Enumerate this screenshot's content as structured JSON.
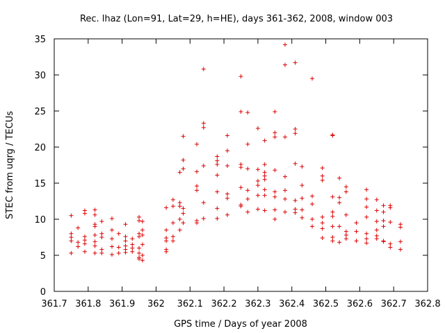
{
  "chart_data": {
    "type": "scatter",
    "title": "Rec. lhaz (Lon=91, Lat=29, h=HE), days 361-362, 2008, window 003",
    "xlabel": "GPS time / Days of year 2008",
    "ylabel": "STEC from uqrg / TECUs",
    "xlim": [
      361.7,
      362.8
    ],
    "ylim": [
      0,
      35
    ],
    "xticks": [
      361.7,
      361.8,
      361.9,
      362.0,
      362.1,
      362.2,
      362.3,
      362.4,
      362.5,
      362.6,
      362.7,
      362.8
    ],
    "xtick_labels": [
      "361.7",
      "361.8",
      "361.9",
      "362",
      "362.1",
      "362.2",
      "362.3",
      "362.4",
      "362.5",
      "362.6",
      "362.7",
      "362.8"
    ],
    "yticks": [
      0,
      5,
      10,
      15,
      20,
      25,
      30,
      35
    ],
    "ytick_labels": [
      "0",
      "5",
      "10",
      "15",
      "20",
      "25",
      "30",
      "35"
    ],
    "grid": false,
    "legend": "none",
    "marker": "plus",
    "color": "#dd0000",
    "points": [
      [
        361.75,
        10.5
      ],
      [
        361.75,
        8.0
      ],
      [
        361.75,
        7.5
      ],
      [
        361.75,
        7.0
      ],
      [
        361.75,
        5.3
      ],
      [
        361.77,
        8.8
      ],
      [
        361.77,
        6.8
      ],
      [
        361.77,
        6.2
      ],
      [
        361.79,
        11.2
      ],
      [
        361.79,
        10.8
      ],
      [
        361.79,
        7.6
      ],
      [
        361.79,
        7.1
      ],
      [
        361.79,
        6.6
      ],
      [
        361.79,
        5.5
      ],
      [
        361.82,
        11.3
      ],
      [
        361.82,
        10.6
      ],
      [
        361.82,
        9.3
      ],
      [
        361.82,
        9.0
      ],
      [
        361.82,
        7.8
      ],
      [
        361.82,
        6.9
      ],
      [
        361.82,
        6.3
      ],
      [
        361.82,
        5.3
      ],
      [
        361.84,
        9.7
      ],
      [
        361.84,
        8.0
      ],
      [
        361.84,
        7.5
      ],
      [
        361.84,
        5.8
      ],
      [
        361.84,
        5.3
      ],
      [
        361.87,
        10.1
      ],
      [
        361.87,
        8.5
      ],
      [
        361.87,
        7.3
      ],
      [
        361.87,
        6.2
      ],
      [
        361.87,
        5.1
      ],
      [
        361.89,
        8.0
      ],
      [
        361.89,
        6.1
      ],
      [
        361.89,
        5.3
      ],
      [
        361.91,
        9.3
      ],
      [
        361.91,
        7.6
      ],
      [
        361.91,
        7.0
      ],
      [
        361.91,
        6.3
      ],
      [
        361.91,
        5.8
      ],
      [
        361.91,
        5.4
      ],
      [
        361.93,
        7.3
      ],
      [
        361.93,
        6.5
      ],
      [
        361.93,
        6.0
      ],
      [
        361.93,
        5.5
      ],
      [
        361.95,
        10.3
      ],
      [
        361.95,
        9.8
      ],
      [
        361.95,
        8.0
      ],
      [
        361.95,
        7.6
      ],
      [
        361.95,
        6.0
      ],
      [
        361.95,
        5.3
      ],
      [
        361.95,
        4.7
      ],
      [
        361.95,
        4.5
      ],
      [
        361.96,
        9.7
      ],
      [
        361.96,
        8.5
      ],
      [
        361.96,
        7.8
      ],
      [
        361.96,
        6.5
      ],
      [
        361.96,
        5.0
      ],
      [
        361.96,
        4.3
      ],
      [
        362.03,
        11.6
      ],
      [
        362.03,
        8.5
      ],
      [
        362.03,
        7.4
      ],
      [
        362.03,
        7.0
      ],
      [
        362.03,
        5.8
      ],
      [
        362.03,
        5.5
      ],
      [
        362.05,
        12.7
      ],
      [
        362.05,
        11.8
      ],
      [
        362.05,
        9.5
      ],
      [
        362.05,
        7.6
      ],
      [
        362.05,
        7.0
      ],
      [
        362.07,
        16.5
      ],
      [
        362.07,
        12.3
      ],
      [
        362.07,
        11.8
      ],
      [
        362.07,
        10.0
      ],
      [
        362.07,
        8.5
      ],
      [
        362.08,
        21.5
      ],
      [
        362.08,
        18.2
      ],
      [
        362.08,
        17.0
      ],
      [
        362.08,
        11.5
      ],
      [
        362.08,
        10.8
      ],
      [
        362.08,
        9.5
      ],
      [
        362.12,
        20.4
      ],
      [
        362.12,
        16.6
      ],
      [
        362.12,
        14.6
      ],
      [
        362.12,
        14.0
      ],
      [
        362.12,
        9.8
      ],
      [
        362.12,
        9.5
      ],
      [
        362.14,
        30.8
      ],
      [
        362.14,
        23.3
      ],
      [
        362.14,
        22.7
      ],
      [
        362.14,
        17.4
      ],
      [
        362.14,
        12.3
      ],
      [
        362.14,
        10.1
      ],
      [
        362.18,
        18.7
      ],
      [
        362.18,
        18.1
      ],
      [
        362.18,
        17.6
      ],
      [
        362.18,
        16.1
      ],
      [
        362.18,
        13.8
      ],
      [
        362.18,
        11.5
      ],
      [
        362.18,
        10.1
      ],
      [
        362.21,
        21.6
      ],
      [
        362.21,
        19.5
      ],
      [
        362.21,
        17.4
      ],
      [
        362.21,
        13.5
      ],
      [
        362.21,
        12.9
      ],
      [
        362.21,
        10.6
      ],
      [
        362.25,
        29.8
      ],
      [
        362.25,
        24.9
      ],
      [
        362.25,
        17.6
      ],
      [
        362.25,
        17.2
      ],
      [
        362.25,
        14.4
      ],
      [
        362.25,
        12.0
      ],
      [
        362.25,
        11.8
      ],
      [
        362.27,
        24.8
      ],
      [
        362.27,
        20.4
      ],
      [
        362.27,
        17.0
      ],
      [
        362.27,
        14.0
      ],
      [
        362.27,
        12.8
      ],
      [
        362.27,
        11.0
      ],
      [
        362.3,
        22.6
      ],
      [
        362.3,
        16.9
      ],
      [
        362.3,
        15.3
      ],
      [
        362.3,
        14.7
      ],
      [
        362.3,
        13.3
      ],
      [
        362.3,
        11.4
      ],
      [
        362.32,
        20.9
      ],
      [
        362.32,
        17.6
      ],
      [
        362.32,
        16.5
      ],
      [
        362.32,
        16.0
      ],
      [
        362.32,
        15.5
      ],
      [
        362.32,
        14.1
      ],
      [
        362.32,
        13.3
      ],
      [
        362.32,
        11.2
      ],
      [
        362.35,
        24.9
      ],
      [
        362.35,
        22.0
      ],
      [
        362.35,
        21.4
      ],
      [
        362.35,
        16.8
      ],
      [
        362.35,
        13.8
      ],
      [
        362.35,
        13.1
      ],
      [
        362.35,
        11.3
      ],
      [
        362.35,
        10.0
      ],
      [
        362.38,
        34.2
      ],
      [
        362.38,
        31.4
      ],
      [
        362.38,
        21.4
      ],
      [
        362.38,
        15.9
      ],
      [
        362.38,
        14.0
      ],
      [
        362.38,
        12.8
      ],
      [
        362.38,
        11.0
      ],
      [
        362.41,
        31.7
      ],
      [
        362.41,
        22.5
      ],
      [
        362.41,
        21.9
      ],
      [
        362.41,
        17.7
      ],
      [
        362.41,
        12.6
      ],
      [
        362.41,
        11.4
      ],
      [
        362.41,
        10.9
      ],
      [
        362.43,
        17.3
      ],
      [
        362.43,
        14.7
      ],
      [
        362.43,
        12.9
      ],
      [
        362.43,
        11.3
      ],
      [
        362.43,
        10.2
      ],
      [
        362.46,
        29.5
      ],
      [
        362.46,
        13.2
      ],
      [
        362.46,
        12.1
      ],
      [
        362.46,
        10.0
      ],
      [
        362.46,
        9.0
      ],
      [
        362.49,
        17.1
      ],
      [
        362.49,
        16.0
      ],
      [
        362.49,
        15.4
      ],
      [
        362.49,
        10.3
      ],
      [
        362.49,
        9.5
      ],
      [
        362.49,
        8.7
      ],
      [
        362.49,
        7.4
      ],
      [
        362.52,
        21.6
      ],
      [
        362.52,
        21.7
      ],
      [
        362.52,
        13.1
      ],
      [
        362.52,
        11.0
      ],
      [
        362.52,
        10.4
      ],
      [
        362.52,
        9.0
      ],
      [
        362.52,
        7.5
      ],
      [
        362.52,
        7.0
      ],
      [
        362.54,
        15.7
      ],
      [
        362.54,
        13.0
      ],
      [
        362.54,
        12.3
      ],
      [
        362.54,
        9.0
      ],
      [
        362.54,
        6.8
      ],
      [
        362.56,
        14.5
      ],
      [
        362.56,
        13.8
      ],
      [
        362.56,
        10.6
      ],
      [
        362.56,
        8.3
      ],
      [
        362.56,
        7.8
      ],
      [
        362.56,
        7.3
      ],
      [
        362.59,
        9.5
      ],
      [
        362.59,
        8.3
      ],
      [
        362.59,
        7.0
      ],
      [
        362.62,
        14.1
      ],
      [
        362.62,
        12.8
      ],
      [
        362.62,
        11.7
      ],
      [
        362.62,
        10.3
      ],
      [
        362.62,
        8.0
      ],
      [
        362.62,
        7.3
      ],
      [
        362.62,
        6.7
      ],
      [
        362.65,
        12.7
      ],
      [
        362.65,
        11.2
      ],
      [
        362.65,
        9.7
      ],
      [
        362.65,
        8.5
      ],
      [
        362.65,
        7.7
      ],
      [
        362.65,
        7.3
      ],
      [
        362.67,
        11.9
      ],
      [
        362.67,
        11.0
      ],
      [
        362.67,
        9.8
      ],
      [
        362.67,
        9.0
      ],
      [
        362.67,
        7.0
      ],
      [
        362.67,
        6.9
      ],
      [
        362.69,
        11.9
      ],
      [
        362.69,
        11.6
      ],
      [
        362.69,
        9.6
      ],
      [
        362.69,
        6.6
      ],
      [
        362.69,
        6.1
      ],
      [
        362.72,
        9.3
      ],
      [
        362.72,
        8.9
      ],
      [
        362.72,
        6.9
      ],
      [
        362.72,
        5.8
      ]
    ]
  }
}
